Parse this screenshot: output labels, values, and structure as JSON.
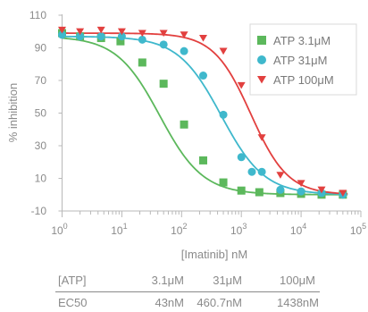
{
  "chart_data": {
    "type": "scatter",
    "xlabel": "[Imatinib] nM",
    "ylabel": "% inhibition",
    "xscale": "log",
    "xlim": [
      1,
      100000
    ],
    "ylim": [
      -10,
      110
    ],
    "x_ticks": [
      {
        "base": "10",
        "exp": "0",
        "value": 1
      },
      {
        "base": "10",
        "exp": "1",
        "value": 10
      },
      {
        "base": "10",
        "exp": "2",
        "value": 100
      },
      {
        "base": "10",
        "exp": "3",
        "value": 1000
      },
      {
        "base": "10",
        "exp": "4",
        "value": 10000
      },
      {
        "base": "10",
        "exp": "5",
        "value": 100000
      }
    ],
    "y_ticks": [
      "110",
      "90",
      "70",
      "50",
      "30",
      "10",
      "-10"
    ],
    "y_tick_values": [
      110,
      90,
      70,
      50,
      30,
      10,
      -10
    ],
    "grid": false,
    "legend_position": "top-right",
    "series": [
      {
        "name": "ATP 3.1μM",
        "color": "#5cb85c",
        "marker": "square",
        "ec50": 43,
        "top": 97,
        "bottom": 0,
        "hill": 1.2,
        "points": [
          {
            "x": 1,
            "y": 99
          },
          {
            "x": 2,
            "y": 97
          },
          {
            "x": 4.5,
            "y": 96
          },
          {
            "x": 9.5,
            "y": 94
          },
          {
            "x": 22,
            "y": 81
          },
          {
            "x": 50,
            "y": 68
          },
          {
            "x": 110,
            "y": 43
          },
          {
            "x": 230,
            "y": 21
          },
          {
            "x": 500,
            "y": 7.5
          },
          {
            "x": 1000,
            "y": 2.5
          },
          {
            "x": 2000,
            "y": 1.5
          },
          {
            "x": 4500,
            "y": 1
          },
          {
            "x": 10000,
            "y": 0.5
          },
          {
            "x": 22000,
            "y": 0
          },
          {
            "x": 50000,
            "y": 0
          }
        ]
      },
      {
        "name": "ATP 31μM",
        "color": "#3fb8cc",
        "marker": "circle",
        "ec50": 460.7,
        "top": 97,
        "bottom": 0,
        "hill": 1.2,
        "points": [
          {
            "x": 1,
            "y": 98
          },
          {
            "x": 2,
            "y": 97
          },
          {
            "x": 4.5,
            "y": 97
          },
          {
            "x": 10,
            "y": 97
          },
          {
            "x": 22,
            "y": 95
          },
          {
            "x": 50,
            "y": 92
          },
          {
            "x": 110,
            "y": 88
          },
          {
            "x": 230,
            "y": 73
          },
          {
            "x": 500,
            "y": 49
          },
          {
            "x": 1000,
            "y": 23
          },
          {
            "x": 1500,
            "y": 14
          },
          {
            "x": 2200,
            "y": 14
          },
          {
            "x": 4500,
            "y": 3
          },
          {
            "x": 10000,
            "y": 2
          },
          {
            "x": 22000,
            "y": 1
          },
          {
            "x": 50000,
            "y": 0
          }
        ]
      },
      {
        "name": "ATP 100μM",
        "color": "#e2403f",
        "marker": "triangle-down",
        "ec50": 1438,
        "top": 99,
        "bottom": 0,
        "hill": 1.4,
        "points": [
          {
            "x": 1,
            "y": 101
          },
          {
            "x": 2,
            "y": 100
          },
          {
            "x": 4.5,
            "y": 101
          },
          {
            "x": 10,
            "y": 100
          },
          {
            "x": 22,
            "y": 99
          },
          {
            "x": 50,
            "y": 99
          },
          {
            "x": 110,
            "y": 98
          },
          {
            "x": 230,
            "y": 96
          },
          {
            "x": 500,
            "y": 88
          },
          {
            "x": 1000,
            "y": 67
          },
          {
            "x": 2200,
            "y": 35
          },
          {
            "x": 4500,
            "y": 12
          },
          {
            "x": 10000,
            "y": 7
          },
          {
            "x": 22000,
            "y": 3
          },
          {
            "x": 50000,
            "y": 1
          }
        ]
      }
    ]
  },
  "table": {
    "header": [
      "[ATP]",
      "3.1μM",
      "31μM",
      "100μM"
    ],
    "row": [
      "EC50",
      "43nM",
      "460.7nM",
      "1438nM"
    ]
  }
}
